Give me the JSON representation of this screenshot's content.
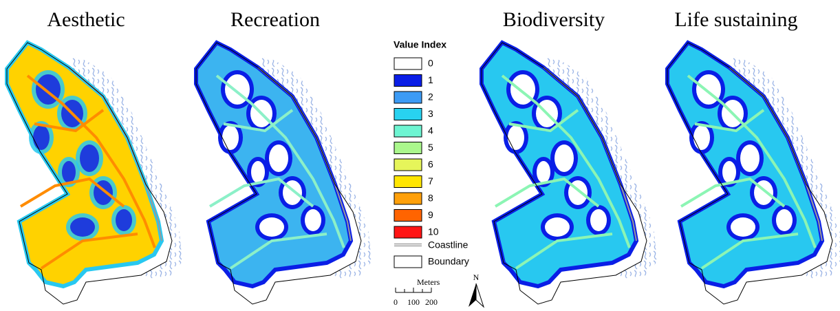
{
  "panels": [
    {
      "title": "Aesthetic"
    },
    {
      "title": "Recreation"
    },
    {
      "title": "Biodiversity"
    },
    {
      "title": "Life sustaining"
    }
  ],
  "legend": {
    "title": "Value Index",
    "items": [
      {
        "label": "0",
        "color": "#ffffff"
      },
      {
        "label": "1",
        "color": "#0a1ee6"
      },
      {
        "label": "2",
        "color": "#3c9bf5"
      },
      {
        "label": "3",
        "color": "#28d2f0"
      },
      {
        "label": "4",
        "color": "#6ef5d2"
      },
      {
        "label": "5",
        "color": "#aaf78c"
      },
      {
        "label": "6",
        "color": "#e6f55a"
      },
      {
        "label": "7",
        "color": "#ffe600"
      },
      {
        "label": "8",
        "color": "#ffa00a"
      },
      {
        "label": "9",
        "color": "#ff6400"
      },
      {
        "label": "10",
        "color": "#ff1414"
      }
    ],
    "coastline": "Coastline",
    "boundary": "Boundary"
  },
  "scale_bar": {
    "unit": "Meters",
    "ticks": [
      "0",
      "100",
      "200"
    ]
  },
  "north_arrow": "N"
}
